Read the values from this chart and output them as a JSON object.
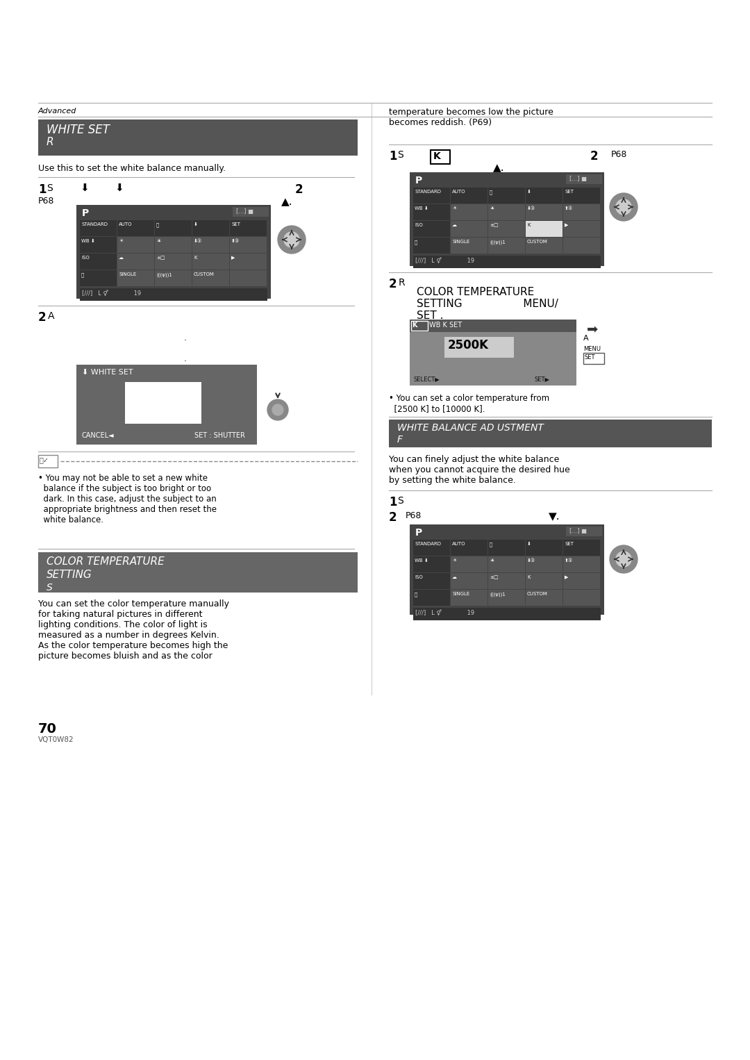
{
  "page_width": 10.8,
  "page_height": 15.26,
  "bg_color": "#ffffff",
  "text_color": "#000000",
  "header_bg": "#555555",
  "header_text_color": "#ffffff",
  "section_bg": "#666666",
  "note_border": "#888888",
  "advanced_label": "Advanced",
  "section1_title": "WHITE SET",
  "section1_subtitle": "R",
  "section1_desc": "Use this to set the white balance manually.",
  "step1_left_label": "1 S",
  "step1_left_icons": "⬇  ⬇",
  "step1_left_num": "2",
  "step1_left_page": "P68",
  "step2_left_label": "2 A",
  "note_text": "• You may not be able to set a new white\n  balance if the subject is too bright or too\n  dark. In this case, adjust the subject to an\n  appropriate brightness and then reset the\n  white balance.",
  "section2_title": "COLOR TEMPERATURE\nSETTING",
  "section2_subtitle": "S",
  "section2_desc": "You can set the color temperature manually\nfor taking natural pictures in different\nlighting conditions. The color of light is\nmeasured as a number in degrees Kelvin.\nAs the color temperature becomes high the\npicture becomes bluish and as the color",
  "right_col_cont": "temperature becomes low the picture\nbecomes reddish. (P69)",
  "right_step1": "1 S",
  "right_step1_k": "K",
  "right_step1_num": "2",
  "right_step1_page": "P68",
  "right_step2": "2 R",
  "right_section_title": "COLOR TEMPERATURE\nSETTING            MENU/\nSET .",
  "right_note": "• You can set a color temperature from\n  [2500 K] to [10000 K].",
  "right_section3_title": "WHITE BALANCE AD USTMENT",
  "right_section3_subtitle": "F",
  "right_section3_desc": "You can finely adjust the white balance\nwhen you cannot acquire the desired hue\nby setting the white balance.",
  "right_step3_label": "1 S",
  "right_step3_num": "2",
  "right_step3_page": "P68",
  "page_number": "70",
  "page_code": "VQT0W82"
}
